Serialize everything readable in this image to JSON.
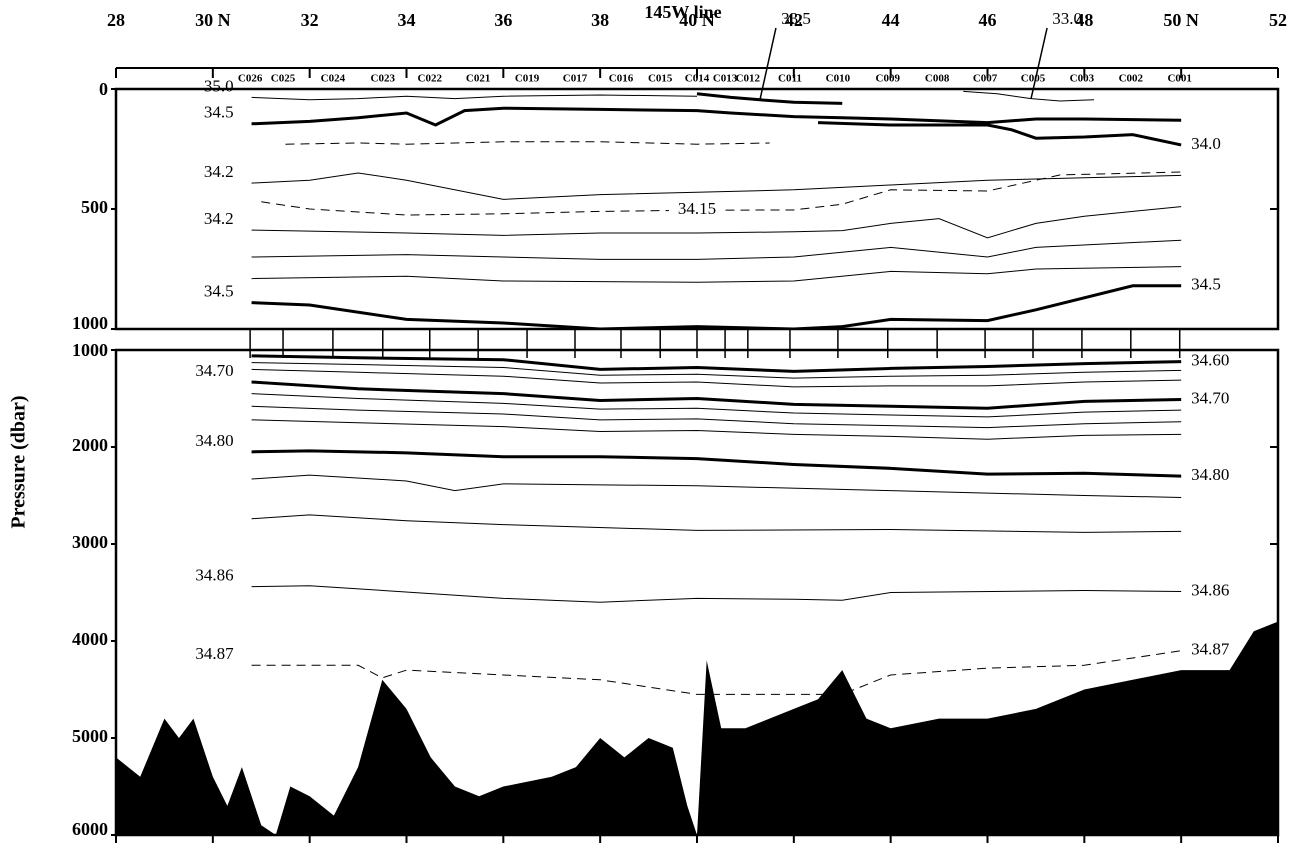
{
  "chart_data": {
    "type": "section",
    "title": "145W line",
    "ylabel": "Pressure (dbar)",
    "xlim": [
      28,
      52
    ],
    "xticks": [
      28,
      {
        "value": 30,
        "label": "30 N"
      },
      32,
      34,
      36,
      38,
      {
        "value": 40,
        "label": "40 N"
      },
      42,
      44,
      46,
      48,
      {
        "value": 50,
        "label": "50 N"
      },
      52
    ],
    "stations": {
      "labels": [
        "C026",
        "C025",
        "C024",
        "C023",
        "C022",
        "C021",
        "C019",
        "C017",
        "C016",
        "C015",
        "C014",
        "C013",
        "C012",
        "C011",
        "C010",
        "C009",
        "C008",
        "C007",
        "C005",
        "C003",
        "C002",
        "C001"
      ],
      "x": [
        30.77,
        31.45,
        32.48,
        33.51,
        34.48,
        35.48,
        36.49,
        37.48,
        38.43,
        39.24,
        40.0,
        40.58,
        41.05,
        41.92,
        42.91,
        43.94,
        44.96,
        45.95,
        46.94,
        47.95,
        48.96,
        49.97
      ]
    },
    "panels": [
      {
        "ylim": [
          0,
          1000
        ],
        "yticks": [
          0,
          500,
          1000
        ],
        "series": [
          {
            "name": "35.0",
            "style": "thin",
            "label": "start",
            "x": [
              30.8,
              32,
              33,
              34,
              35,
              36,
              38,
              40
            ],
            "values": [
              35,
              45,
              40,
              30,
              40,
              30,
              25,
              30
            ]
          },
          {
            "name": "34.5",
            "style": "bold",
            "label": "start",
            "x": [
              30.8,
              32,
              33,
              34,
              34.6,
              35.2,
              36,
              38,
              40,
              40.7,
              42,
              43,
              44,
              46,
              47,
              48,
              50
            ],
            "values": [
              145,
              135,
              120,
              100,
              150,
              90,
              80,
              85,
              90,
              100,
              115,
              120,
              125,
              140,
              125,
              125,
              130
            ]
          },
          {
            "name": "33.5",
            "style": "bold",
            "label": "leader",
            "x": [
              40,
              40.7,
              41.3,
              42,
              43
            ],
            "values": [
              20,
              35,
              45,
              55,
              60
            ]
          },
          {
            "name": "33.0",
            "style": "thin",
            "label": "leader",
            "x": [
              45.5,
              46.2,
              46.9,
              47.5,
              48.2
            ],
            "values": [
              10,
              20,
              40,
              50,
              45
            ]
          },
          {
            "name": "34.0",
            "style": "bold",
            "label": "end",
            "x": [
              42.5,
              44,
              46,
              46.5,
              47,
              48,
              49,
              50
            ],
            "values": [
              140,
              150,
              150,
              170,
              205,
              200,
              190,
              233
            ]
          },
          {
            "style": "dashed",
            "x": [
              31.5,
              33,
              34,
              36,
              38,
              40,
              41.5
            ],
            "values": [
              230,
              225,
              230,
              220,
              220,
              230,
              225
            ]
          },
          {
            "name": "34.2",
            "style": "thin",
            "label": "start",
            "x": [
              30.8,
              32,
              33,
              34,
              36,
              38,
              40,
              42,
              44,
              46,
              48,
              50
            ],
            "values": [
              392,
              380,
              350,
              380,
              460,
              440,
              430,
              420,
              400,
              380,
              370,
              360
            ]
          },
          {
            "name": "34.15",
            "style": "dashed",
            "label": "mid",
            "x": [
              31,
              32,
              34,
              36,
              38,
              40,
              42,
              43,
              44,
              46,
              47.5,
              50
            ],
            "values": [
              470,
              500,
              525,
              520,
              510,
              505,
              504,
              480,
              420,
              425,
              358,
              346
            ]
          },
          {
            "name": "34.2",
            "style": "thin",
            "label": "start",
            "x": [
              30.8,
              32,
              34,
              36,
              38,
              40,
              42,
              43,
              44,
              45,
              46,
              47,
              48,
              50
            ],
            "values": [
              588,
              592,
              600,
              610,
              600,
              600,
              595,
              590,
              560,
              540,
              620,
              560,
              530,
              490
            ]
          },
          {
            "style": "thin",
            "x": [
              30.8,
              34,
              36,
              38,
              40,
              42,
              44,
              46,
              47,
              50
            ],
            "values": [
              700,
              690,
              700,
              710,
              710,
              700,
              660,
              700,
              660,
              630
            ]
          },
          {
            "style": "thin",
            "x": [
              30.8,
              34,
              36,
              40,
              42,
              44,
              46,
              47,
              50
            ],
            "values": [
              790,
              780,
              800,
              805,
              800,
              760,
              770,
              750,
              740
            ]
          },
          {
            "name": "34.5",
            "style": "bold",
            "label": "both",
            "x": [
              30.8,
              32,
              34,
              36,
              38,
              40,
              42,
              43,
              44,
              46,
              47,
              49,
              50
            ],
            "values": [
              890,
              900,
              960,
              975,
              1000,
              990,
              1000,
              990,
              960,
              965,
              920,
              820,
              820
            ]
          }
        ]
      },
      {
        "ylim": [
          1000,
          6000
        ],
        "yticks": [
          1000,
          2000,
          3000,
          4000,
          5000,
          6000
        ],
        "series": [
          {
            "style": "area",
            "color": "#000000",
            "x": [
              28,
              28.5,
              29,
              29.3,
              29.6,
              30,
              30.3,
              30.6,
              31,
              31.3,
              31.6,
              32,
              32.5,
              33,
              33.5,
              34,
              34.5,
              35,
              35.5,
              36,
              37,
              37.5,
              38,
              38.5,
              39,
              39.5,
              39.8,
              40,
              40.2,
              40.5,
              41,
              42,
              42.5,
              43,
              43.5,
              44,
              45,
              46,
              47,
              48,
              49,
              50,
              51,
              51.5,
              52
            ],
            "values": [
              5200,
              5400,
              4800,
              5000,
              4800,
              5400,
              5700,
              5300,
              5900,
              6000,
              5500,
              5600,
              5800,
              5300,
              4400,
              4700,
              5200,
              5500,
              5600,
              5500,
              5400,
              5300,
              5000,
              5200,
              5000,
              5100,
              5700,
              6000,
              4200,
              4900,
              4900,
              4700,
              4600,
              4300,
              4800,
              4900,
              4800,
              4800,
              4700,
              4500,
              4400,
              4300,
              4300,
              3900,
              3800
            ]
          },
          {
            "name": "34.60",
            "style": "bold",
            "label": "end",
            "x": [
              30.8,
              33,
              36,
              38,
              40,
              42,
              44,
              46,
              48,
              50
            ],
            "values": [
              1060,
              1080,
              1100,
              1200,
              1180,
              1220,
              1190,
              1170,
              1140,
              1120
            ]
          },
          {
            "style": "thin",
            "x": [
              30.8,
              33,
              36,
              38,
              40,
              42,
              44,
              46,
              48,
              50
            ],
            "values": [
              1130,
              1150,
              1180,
              1260,
              1250,
              1290,
              1270,
              1260,
              1230,
              1210
            ]
          },
          {
            "style": "thin",
            "x": [
              30.8,
              33,
              36,
              38,
              40,
              42,
              44,
              46,
              48,
              50
            ],
            "values": [
              1200,
              1230,
              1270,
              1340,
              1330,
              1380,
              1370,
              1370,
              1330,
              1310
            ]
          },
          {
            "name": "34.70",
            "style": "bold",
            "label": "both",
            "x": [
              30.8,
              33,
              36,
              38,
              40,
              42,
              44,
              46,
              48,
              50
            ],
            "values": [
              1330,
              1400,
              1450,
              1520,
              1500,
              1560,
              1580,
              1600,
              1530,
              1510
            ]
          },
          {
            "style": "thin",
            "x": [
              30.8,
              33,
              36,
              38,
              40,
              42,
              44,
              46,
              48,
              50
            ],
            "values": [
              1450,
              1500,
              1550,
              1610,
              1600,
              1650,
              1670,
              1690,
              1640,
              1620
            ]
          },
          {
            "style": "thin",
            "x": [
              30.8,
              33,
              36,
              38,
              40,
              42,
              44,
              46,
              48,
              50
            ],
            "values": [
              1580,
              1620,
              1660,
              1720,
              1710,
              1760,
              1780,
              1800,
              1760,
              1740
            ]
          },
          {
            "style": "thin",
            "x": [
              30.8,
              33,
              36,
              38,
              40,
              42,
              44,
              46,
              48,
              50
            ],
            "values": [
              1720,
              1750,
              1790,
              1840,
              1830,
              1870,
              1890,
              1920,
              1880,
              1870
            ]
          },
          {
            "name": "34.80",
            "style": "bold",
            "label": "both",
            "x": [
              30.8,
              32,
              34,
              36,
              38,
              40,
              42,
              44,
              46,
              48,
              50
            ],
            "values": [
              2050,
              2040,
              2060,
              2100,
              2100,
              2120,
              2180,
              2220,
              2280,
              2270,
              2300
            ]
          },
          {
            "style": "thin",
            "x": [
              30.8,
              32,
              34,
              35,
              36,
              40,
              44,
              48,
              50
            ],
            "values": [
              2330,
              2290,
              2350,
              2450,
              2380,
              2400,
              2450,
              2500,
              2520
            ]
          },
          {
            "style": "thin",
            "x": [
              30.8,
              32,
              34,
              36,
              40,
              44,
              48,
              50
            ],
            "values": [
              2740,
              2700,
              2760,
              2800,
              2860,
              2850,
              2880,
              2870
            ]
          },
          {
            "name": "34.86",
            "style": "thin",
            "label": "both",
            "x": [
              30.8,
              32,
              36,
              38,
              40,
              42,
              43,
              44,
              48,
              50
            ],
            "values": [
              3440,
              3430,
              3560,
              3600,
              3560,
              3570,
              3580,
              3500,
              3480,
              3490
            ]
          },
          {
            "name": "34.87",
            "style": "dashed",
            "label": "both",
            "x": [
              30.8,
              33,
              33.5,
              34,
              36,
              38,
              40,
              41,
              43,
              44,
              46,
              48,
              50
            ],
            "values": [
              4250,
              4250,
              4380,
              4300,
              4350,
              4400,
              4550,
              4550,
              4550,
              4350,
              4280,
              4250,
              4100
            ]
          }
        ]
      }
    ]
  }
}
